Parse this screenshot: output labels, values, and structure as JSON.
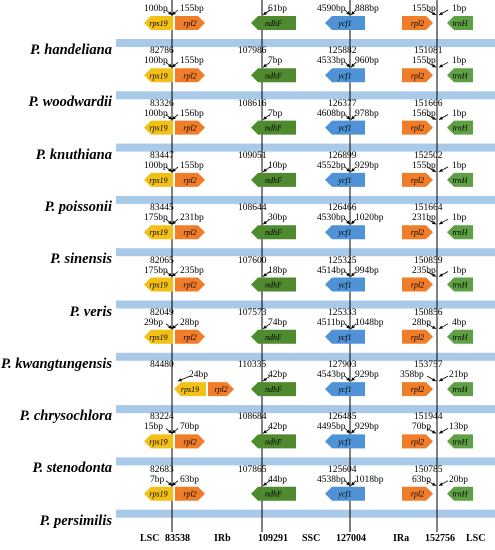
{
  "colors": {
    "band": "#a9c9e8",
    "rps19": "#f3c017",
    "rpl2": "#ef7d29",
    "ndhF": "#4f8a2f",
    "ycf1": "#4f93d6",
    "trnH": "#5fa044"
  },
  "genes": {
    "rps19": "rps19",
    "rpl2": "rpl2",
    "ndhF": "ndhF",
    "ycf1": "ycf1",
    "trnH": "trnH"
  },
  "species": [
    {
      "name": "P. handeliana",
      "rps19_bp": "100bp",
      "rpl2_bp": "155bp",
      "ndhF_bp": "61bp",
      "ycf1_left_bp": "4590bp",
      "ycf1_right_bp": "888bp",
      "rpl2_ira_bp": "155bp",
      "trnH_bp": "1bp",
      "pos": []
    },
    {
      "name": "P. woodwardii",
      "rps19_bp": "100bp",
      "rpl2_bp": "155bp",
      "ndhF_bp": "7bp",
      "ycf1_left_bp": "4533bp",
      "ycf1_right_bp": "960bp",
      "rpl2_ira_bp": "155bp",
      "trnH_bp": "1bp",
      "pos": [
        "82786",
        "107986",
        "125882",
        "151081"
      ]
    },
    {
      "name": "P. knuthiana",
      "rps19_bp": "100bp",
      "rpl2_bp": "156bp",
      "ndhF_bp": "7bp",
      "ycf1_left_bp": "4608bp",
      "ycf1_right_bp": "978bp",
      "rpl2_ira_bp": "156bp",
      "trnH_bp": "1bp",
      "pos": [
        "83326",
        "108616",
        "126377",
        "151666"
      ]
    },
    {
      "name": "P. poissonii",
      "rps19_bp": "100bp",
      "rpl2_bp": "155bp",
      "ndhF_bp": "10bp",
      "ycf1_left_bp": "4552bp",
      "ycf1_right_bp": "929bp",
      "rpl2_ira_bp": "155bp",
      "trnH_bp": "1bp",
      "pos": [
        "83447",
        "109051",
        "126899",
        "152502"
      ]
    },
    {
      "name": "P. sinensis",
      "rps19_bp": "175bp",
      "rpl2_bp": "231bp",
      "ndhF_bp": "30bp",
      "ycf1_left_bp": "4530bp",
      "ycf1_right_bp": "1020bp",
      "rpl2_ira_bp": "231bp",
      "trnH_bp": "1bp",
      "pos": [
        "83445",
        "108644",
        "126466",
        "151664"
      ]
    },
    {
      "name": "P. veris",
      "rps19_bp": "175bp",
      "rpl2_bp": "235bp",
      "ndhF_bp": "18bp",
      "ycf1_left_bp": "4514bp",
      "ycf1_right_bp": "994bp",
      "rpl2_ira_bp": "235bp",
      "trnH_bp": "1bp",
      "pos": [
        "82065",
        "107600",
        "125325",
        "150859"
      ]
    },
    {
      "name": "P. kwangtungensis",
      "rps19_bp": "29bp",
      "rpl2_bp": "28bp",
      "ndhF_bp": "74bp",
      "ycf1_left_bp": "4511bp",
      "ycf1_right_bp": "1048bp",
      "rpl2_ira_bp": "28bp",
      "trnH_bp": "4bp",
      "pos": [
        "82049",
        "107573",
        "125333",
        "150856"
      ]
    },
    {
      "name": "P. chrysochlora",
      "rps19_bp": "",
      "rpl2_bp": "24bp",
      "ndhF_bp": "42bp",
      "ycf1_left_bp": "4543bp",
      "ycf1_right_bp": "929bp",
      "rpl2_ira_bp": "358bp",
      "trnH_bp": "21bp",
      "pos": [
        "84480",
        "110335",
        "127903",
        "153757"
      ]
    },
    {
      "name": "P. stenodonta",
      "rps19_bp": "15bp",
      "rpl2_bp": "70bp",
      "ndhF_bp": "42bp",
      "ycf1_left_bp": "4495bp",
      "ycf1_right_bp": "929bp",
      "rpl2_ira_bp": "70bp",
      "trnH_bp": "13bp",
      "pos": [
        "83224",
        "108684",
        "126485",
        "151944"
      ]
    },
    {
      "name": "P. persimilis",
      "rps19_bp": "7bp",
      "rpl2_bp": "63bp",
      "ndhF_bp": "44bp",
      "ycf1_left_bp": "4538bp",
      "ycf1_right_bp": "1018bp",
      "rpl2_ira_bp": "63bp",
      "trnH_bp": "20bp",
      "pos": [
        "82683",
        "107865",
        "125604",
        "150785"
      ]
    }
  ],
  "footer": {
    "lsc1": "LSC",
    "pos1": "83538",
    "irb": "IRb",
    "pos2": "109291",
    "ssc": "SSC",
    "pos3": "127004",
    "ira": "IRa",
    "pos4": "152756",
    "lsc2": "LSC"
  }
}
